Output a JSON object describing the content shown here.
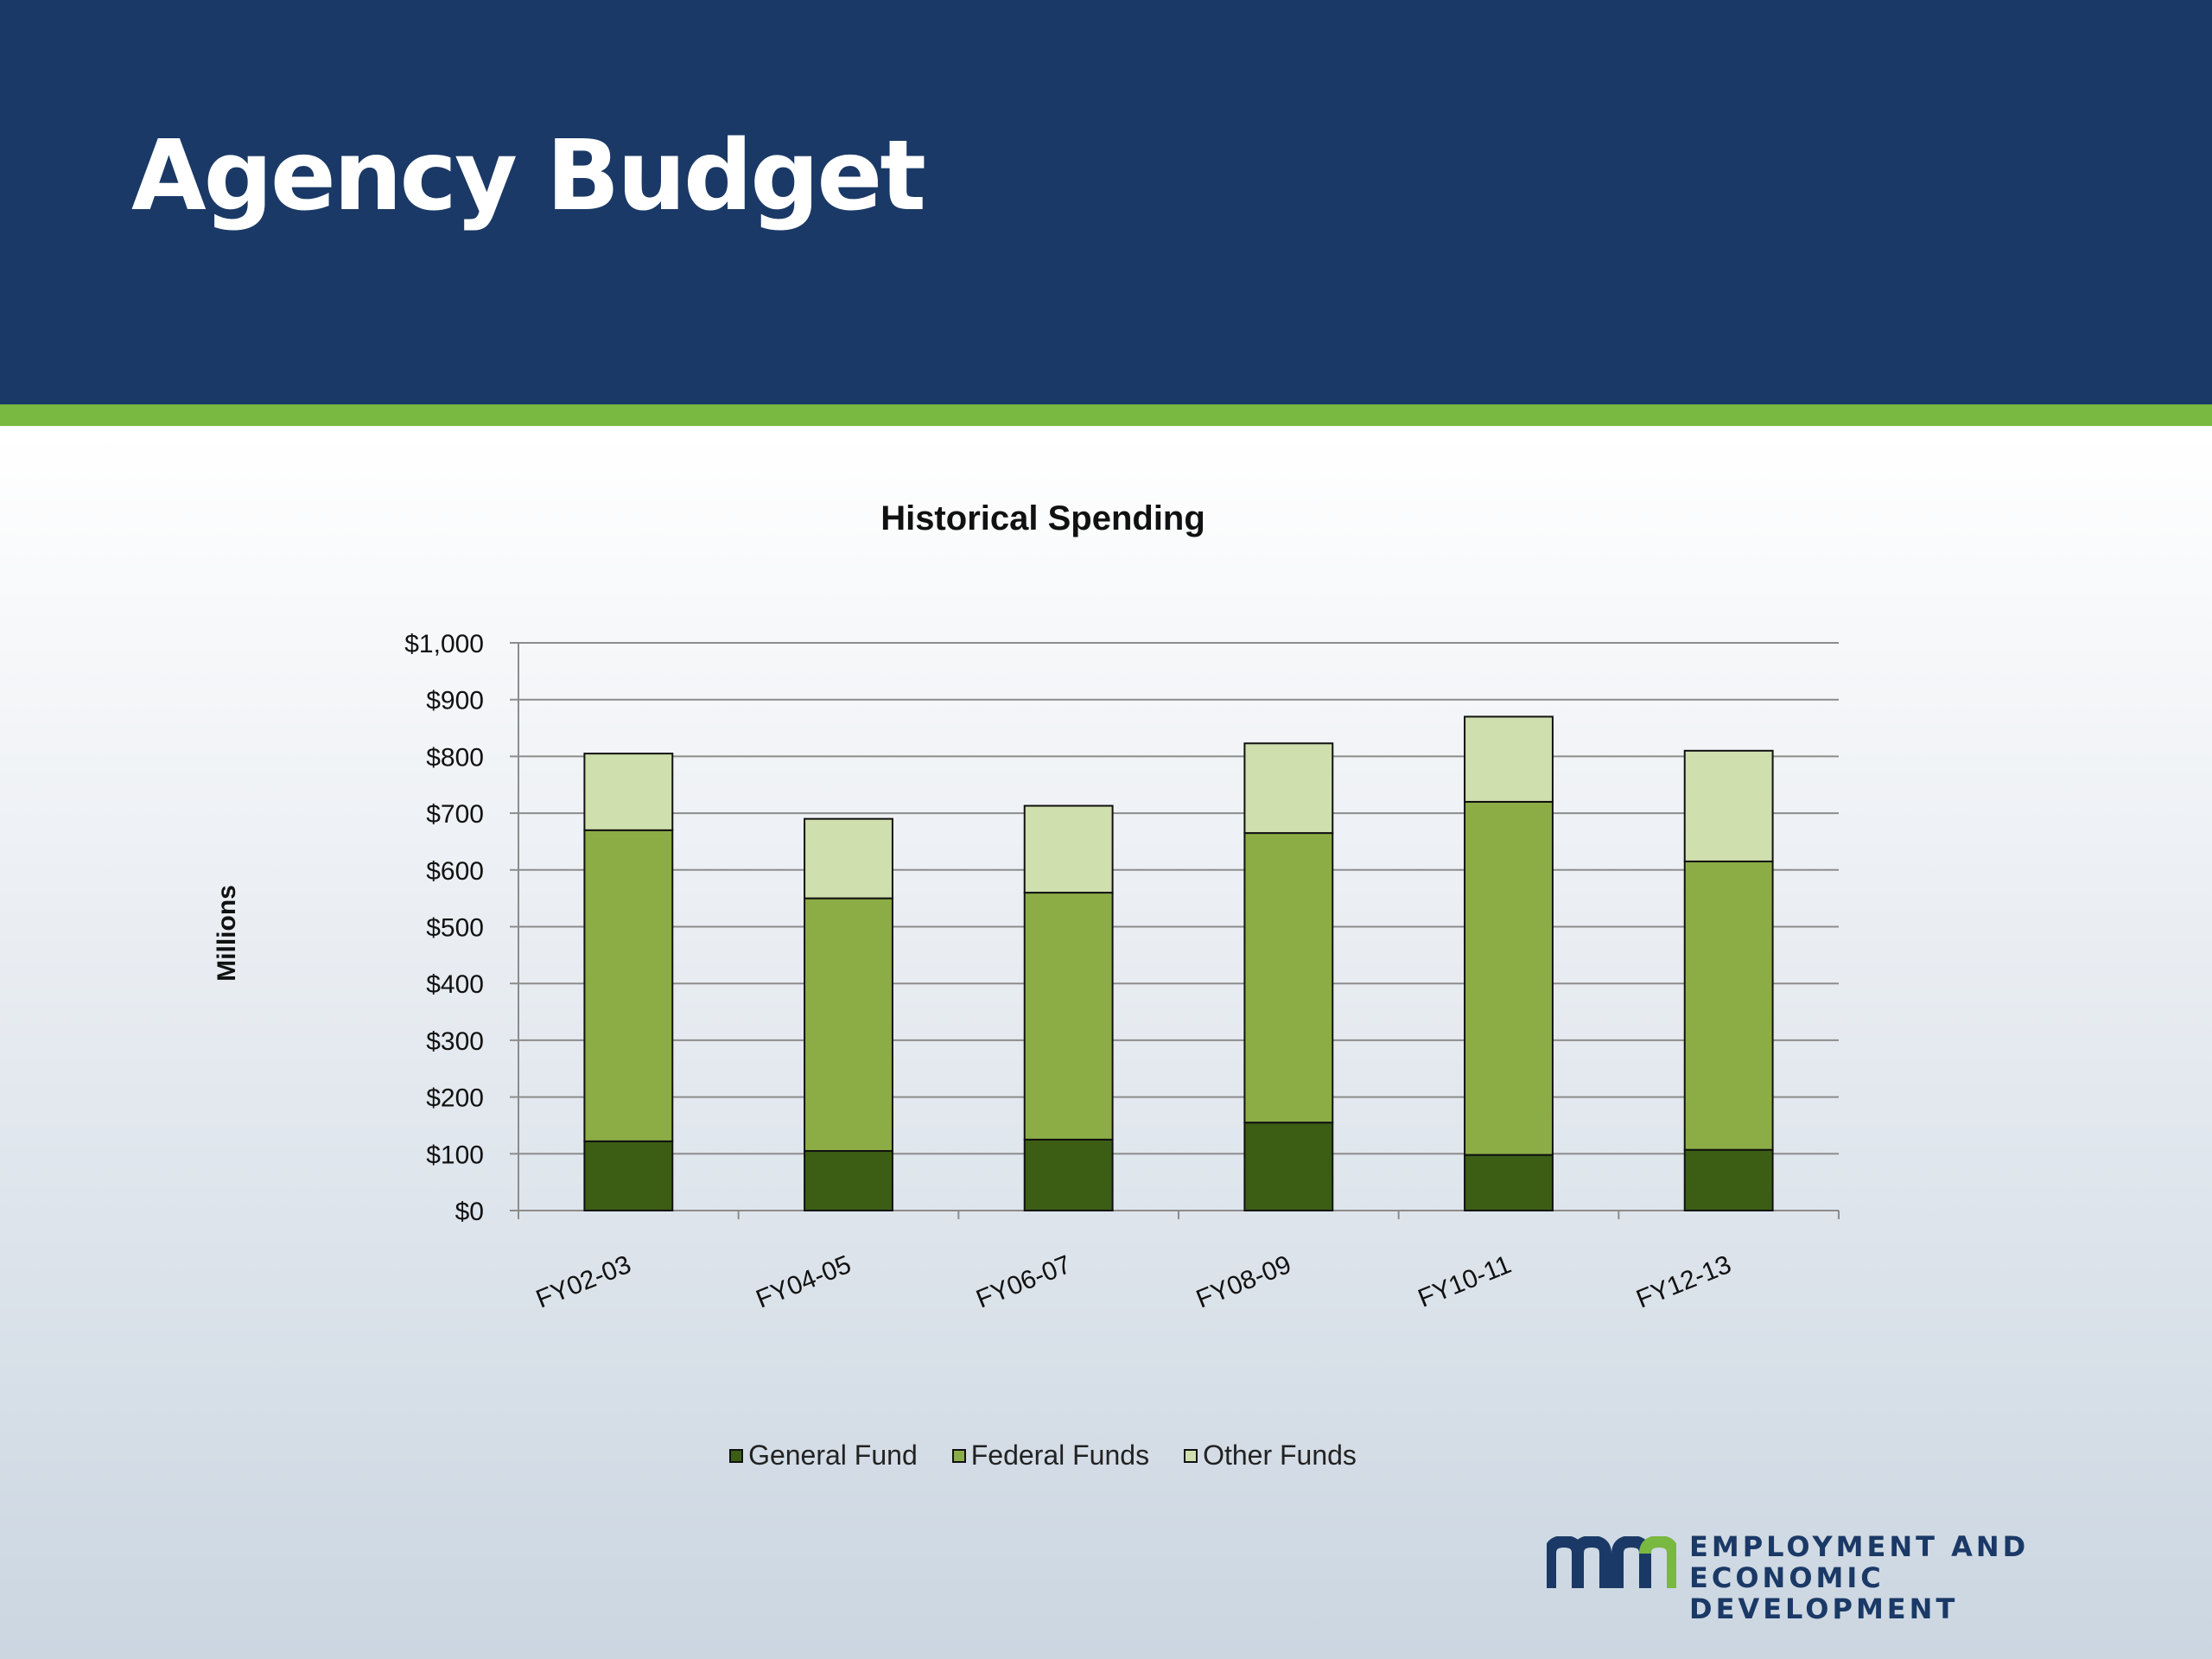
{
  "slide": {
    "title": "Agency Budget",
    "logo_line1": "EMPLOYMENT AND",
    "logo_line2": "ECONOMIC DEVELOPMENT"
  },
  "colors": {
    "header": "#1a3966",
    "stripe": "#79b841",
    "general_fund": "#3b5e14",
    "federal_funds": "#8cad46",
    "other_funds": "#cfdfad",
    "logo_blue": "#1a3966",
    "logo_green": "#79b841"
  },
  "chart_data": {
    "type": "bar",
    "stacked": true,
    "title": "Historical Spending",
    "xlabel": "",
    "ylabel": "Millions",
    "ylim": [
      0,
      1000
    ],
    "yticks": [
      "$0",
      "$100",
      "$200",
      "$300",
      "$400",
      "$500",
      "$600",
      "$700",
      "$800",
      "$900",
      "$1,000"
    ],
    "ytick_values": [
      0,
      100,
      200,
      300,
      400,
      500,
      600,
      700,
      800,
      900,
      1000
    ],
    "categories": [
      "FY02-03",
      "FY04-05",
      "FY06-07",
      "FY08-09",
      "FY10-11",
      "FY12-13"
    ],
    "series": [
      {
        "name": "General Fund",
        "color": "#3b5e14",
        "values": [
          122,
          105,
          125,
          155,
          98,
          107
        ]
      },
      {
        "name": "Federal Funds",
        "color": "#8cad46",
        "values": [
          548,
          445,
          435,
          510,
          622,
          508
        ]
      },
      {
        "name": "Other Funds",
        "color": "#cfdfad",
        "values": [
          135,
          140,
          153,
          158,
          150,
          195
        ]
      }
    ],
    "grid": true,
    "legend": "bottom"
  }
}
